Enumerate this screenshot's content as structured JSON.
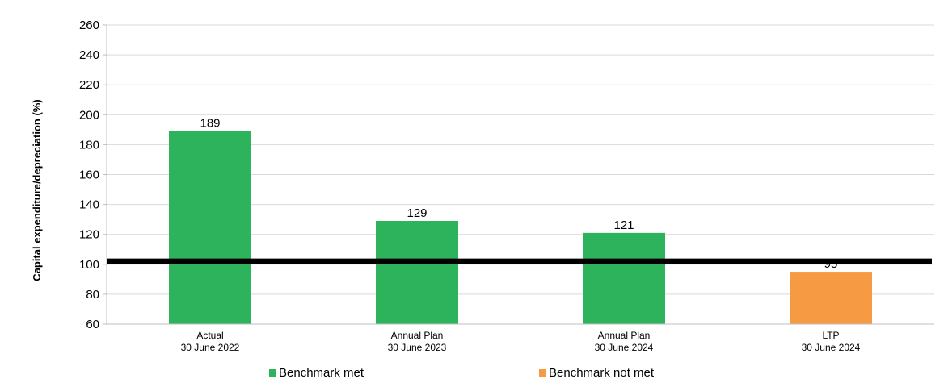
{
  "chart_data": {
    "type": "bar",
    "ylabel": "Capital expenditure/depreciation (%)",
    "xlabel": "",
    "ylim": [
      60,
      260
    ],
    "yticks": [
      60,
      80,
      100,
      120,
      140,
      160,
      180,
      200,
      220,
      240,
      260
    ],
    "grid": true,
    "categories": [
      {
        "line1": "Actual",
        "line2": "30 June 2022"
      },
      {
        "line1": "Annual Plan",
        "line2": "30 June 2023"
      },
      {
        "line1": "Annual Plan",
        "line2": "30 June 2024"
      },
      {
        "line1": "LTP",
        "line2": "30 June 2024"
      }
    ],
    "values": [
      189,
      129,
      121,
      95
    ],
    "data_labels": [
      "189",
      "129",
      "121",
      "95"
    ],
    "bar_status": [
      "met",
      "met",
      "met",
      "not met"
    ],
    "benchmark": 102,
    "legend": [
      {
        "label": "Benchmark met",
        "color": "#2cb35c"
      },
      {
        "label": "Benchmark not met",
        "color": "#f79a44"
      }
    ],
    "legend_position": "bottom",
    "colors": {
      "met": "#2cb35c",
      "not_met": "#f79a44",
      "benchmark_line": "#000000",
      "grid": "#d9d9d9"
    }
  }
}
